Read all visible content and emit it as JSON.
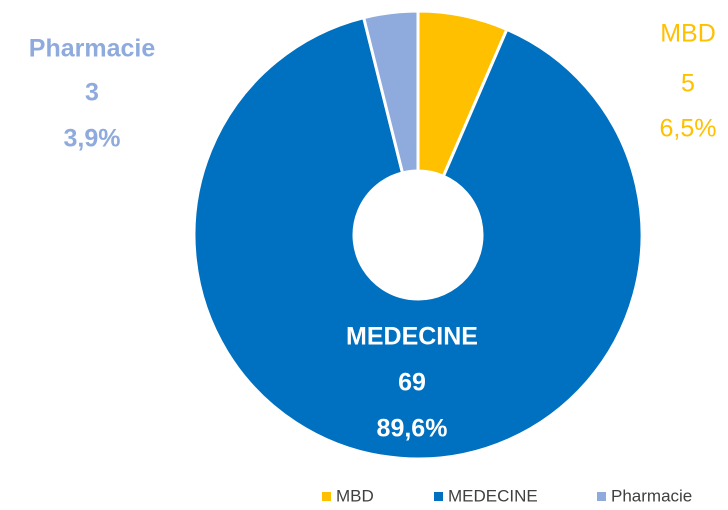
{
  "chart_data": {
    "type": "donut",
    "categories": [
      "MBD",
      "MEDECINE",
      "Pharmacie"
    ],
    "values": [
      5,
      69,
      3
    ],
    "percent_labels": [
      "6,5%",
      "89,6%",
      "3,9%"
    ],
    "colors": [
      "#ffc000",
      "#0070c0",
      "#8faadc"
    ],
    "legend": "bottom"
  }
}
